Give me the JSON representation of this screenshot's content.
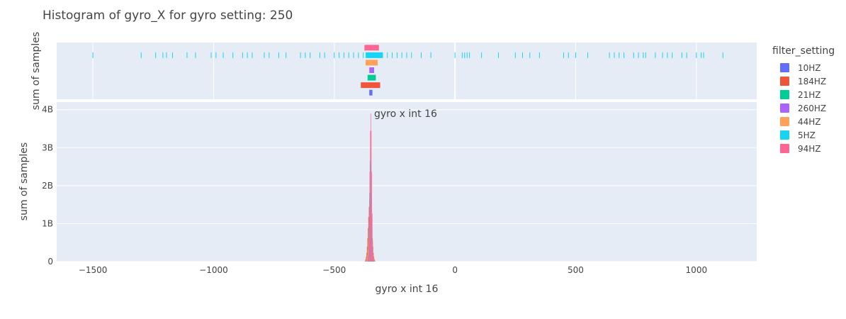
{
  "chart_data": {
    "type": "bar",
    "title": "Histogram of gyro_X for gyro setting: 250",
    "xlabel": "gyro x int 16",
    "ylabel": "sum of samples",
    "marginal_ylabel": "sum of samples",
    "annotation": "gyro x int 16",
    "xlim": [
      -1650,
      1250
    ],
    "ylim": [
      0,
      4200000000
    ],
    "x_ticks": [
      {
        "value": -1500,
        "label": "−1500"
      },
      {
        "value": -1000,
        "label": "−1000"
      },
      {
        "value": -500,
        "label": "−500"
      },
      {
        "value": 0,
        "label": "0"
      },
      {
        "value": 500,
        "label": "500"
      },
      {
        "value": 1000,
        "label": "1000"
      }
    ],
    "y_ticks": [
      {
        "value": 0,
        "label": "0"
      },
      {
        "value": 1000000000,
        "label": "1B"
      },
      {
        "value": 2000000000,
        "label": "2B"
      },
      {
        "value": 3000000000,
        "label": "3B"
      },
      {
        "value": 4000000000,
        "label": "4B"
      }
    ],
    "grid": true,
    "legend_title": "filter_setting",
    "legend_placement": "right",
    "series": [
      {
        "name": "10HZ",
        "color": "#636efa",
        "peak_x": -348,
        "peak": 1000000000,
        "width": 4,
        "box": {
          "q1": -355,
          "q3": -342
        }
      },
      {
        "name": "184HZ",
        "color": "#EF553B",
        "peak_x": -352,
        "peak": 1700000000,
        "width": 7,
        "box": {
          "q1": -390,
          "q3": -310
        }
      },
      {
        "name": "21HZ",
        "color": "#00cc96",
        "peak_x": -349,
        "peak": 1200000000,
        "width": 5,
        "box": {
          "q1": -362,
          "q3": -328
        }
      },
      {
        "name": "260HZ",
        "color": "#ab63fa",
        "peak_x": -350,
        "peak": 900000000,
        "width": 5,
        "box": {
          "q1": -355,
          "q3": -335
        }
      },
      {
        "name": "44HZ",
        "color": "#FFA15A",
        "peak_x": -351,
        "peak": 1300000000,
        "width": 6,
        "box": {
          "q1": -370,
          "q3": -320
        }
      },
      {
        "name": "5HZ",
        "color": "#19d3f3",
        "peak_x": -350,
        "peak": 3000000000,
        "width": 4,
        "box": {
          "q1": -370,
          "q3": -300
        },
        "rug": [
          -1500,
          -1300,
          -1240,
          -1210,
          -1195,
          -1170,
          -1110,
          -1075,
          -1010,
          -990,
          -960,
          -920,
          -880,
          -860,
          -840,
          -790,
          -770,
          -730,
          -700,
          -640,
          -620,
          -600,
          -560,
          -540,
          -500,
          -480,
          -460,
          -440,
          -420,
          -400,
          -380,
          -360,
          -340,
          -300,
          -280,
          -260,
          -240,
          -220,
          -200,
          -180,
          -140,
          -100,
          0,
          30,
          40,
          50,
          60,
          110,
          180,
          250,
          280,
          310,
          350,
          450,
          470,
          500,
          550,
          640,
          660,
          680,
          700,
          740,
          760,
          780,
          790,
          830,
          860,
          880,
          900,
          940,
          960,
          1000,
          1020,
          1030,
          1110
        ]
      },
      {
        "name": "94HZ",
        "color": "#FF6692",
        "peak_x": -349,
        "peak": 3900000000,
        "width": 4,
        "box": {
          "q1": -375,
          "q3": -315
        }
      }
    ]
  }
}
